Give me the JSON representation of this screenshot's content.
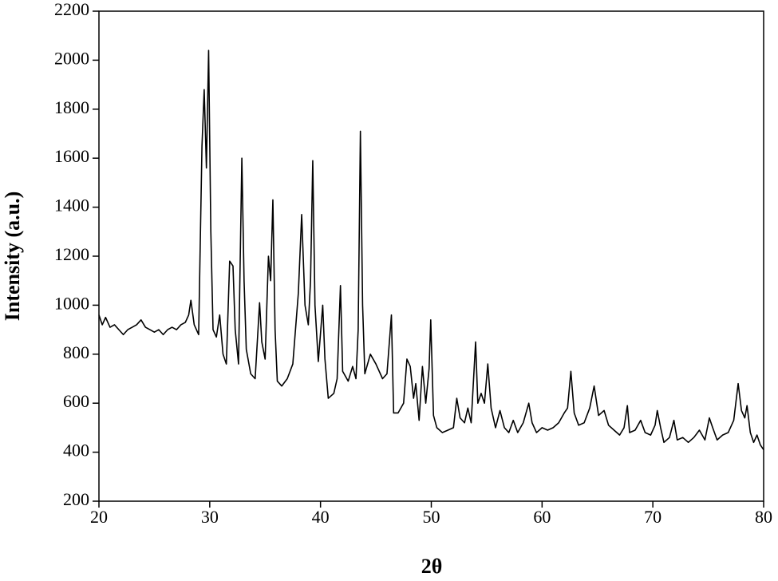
{
  "chart_data": {
    "type": "line",
    "x_label": "2θ",
    "y_label": "Intensity (a.u.)",
    "xlim": [
      20,
      80
    ],
    "xticks": [
      20,
      30,
      40,
      50,
      60,
      70,
      80
    ],
    "ylim": [
      200,
      2200
    ],
    "yticks": [
      200,
      400,
      600,
      800,
      1000,
      1200,
      1400,
      1600,
      1800,
      2000,
      2200
    ],
    "x": [
      20,
      20.3,
      20.6,
      21,
      21.4,
      21.8,
      22.2,
      22.6,
      23,
      23.4,
      23.8,
      24.2,
      24.6,
      25,
      25.4,
      25.8,
      26.2,
      26.6,
      27,
      27.4,
      27.8,
      28.1,
      28.3,
      28.6,
      29,
      29.3,
      29.5,
      29.7,
      29.9,
      30.1,
      30.3,
      30.6,
      30.9,
      31.2,
      31.5,
      31.8,
      32.1,
      32.3,
      32.6,
      32.9,
      33.1,
      33.3,
      33.7,
      34.1,
      34.5,
      34.7,
      35,
      35.3,
      35.5,
      35.7,
      35.9,
      36.1,
      36.5,
      37,
      37.5,
      38,
      38.3,
      38.6,
      38.9,
      39.1,
      39.3,
      39.5,
      39.8,
      40.2,
      40.4,
      40.7,
      41.2,
      41.5,
      41.8,
      42,
      42.5,
      42.9,
      43.2,
      43.4,
      43.6,
      43.8,
      44,
      44.5,
      45,
      45.6,
      46,
      46.4,
      46.6,
      47,
      47.5,
      47.8,
      48.1,
      48.4,
      48.6,
      48.9,
      49.2,
      49.5,
      49.8,
      49.95,
      50.2,
      50.5,
      51,
      51.5,
      52,
      52.3,
      52.6,
      53,
      53.3,
      53.6,
      54,
      54.2,
      54.5,
      54.8,
      55.1,
      55.4,
      55.8,
      56.2,
      56.6,
      57,
      57.4,
      57.8,
      58.3,
      58.8,
      59.1,
      59.5,
      60,
      60.5,
      61,
      61.5,
      62,
      62.3,
      62.6,
      62.9,
      63.3,
      63.8,
      64.3,
      64.7,
      65.1,
      65.6,
      66,
      66.5,
      67,
      67.4,
      67.7,
      67.9,
      68.4,
      68.9,
      69.3,
      69.8,
      70.2,
      70.4,
      70.7,
      71,
      71.5,
      71.9,
      72.2,
      72.7,
      73.2,
      73.7,
      74.2,
      74.7,
      75.1,
      75.4,
      75.8,
      76.3,
      76.8,
      77.3,
      77.7,
      78,
      78.3,
      78.5,
      78.8,
      79.1,
      79.4,
      79.7,
      80
    ],
    "series": [
      {
        "color": "#000000",
        "values": [
          960,
          920,
          950,
          910,
          920,
          900,
          880,
          900,
          910,
          920,
          940,
          910,
          900,
          890,
          900,
          880,
          900,
          910,
          900,
          920,
          930,
          960,
          1020,
          920,
          880,
          1650,
          1880,
          1560,
          2040,
          1300,
          900,
          870,
          960,
          800,
          760,
          1180,
          1160,
          900,
          760,
          1600,
          1100,
          820,
          720,
          700,
          1010,
          850,
          780,
          1200,
          1100,
          1430,
          900,
          690,
          670,
          700,
          760,
          1050,
          1370,
          1000,
          920,
          1100,
          1590,
          1000,
          770,
          1000,
          780,
          620,
          640,
          700,
          1080,
          730,
          690,
          750,
          700,
          900,
          1710,
          1000,
          720,
          800,
          760,
          700,
          720,
          960,
          560,
          560,
          600,
          780,
          750,
          620,
          680,
          530,
          750,
          600,
          740,
          940,
          550,
          500,
          480,
          490,
          500,
          620,
          540,
          520,
          580,
          520,
          850,
          600,
          640,
          600,
          760,
          580,
          500,
          570,
          500,
          480,
          530,
          480,
          520,
          600,
          520,
          480,
          500,
          490,
          500,
          520,
          560,
          580,
          730,
          560,
          510,
          520,
          580,
          670,
          550,
          570,
          510,
          490,
          470,
          500,
          590,
          480,
          490,
          530,
          480,
          470,
          510,
          570,
          500,
          440,
          460,
          530,
          450,
          460,
          440,
          460,
          490,
          450,
          540,
          500,
          450,
          470,
          480,
          530,
          680,
          570,
          540,
          590,
          480,
          440,
          470,
          430,
          410
        ]
      }
    ]
  }
}
